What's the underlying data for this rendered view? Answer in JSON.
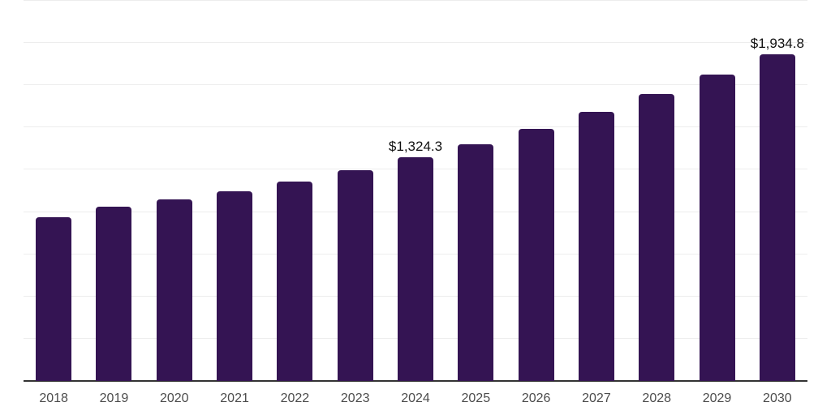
{
  "chart_data": {
    "type": "bar",
    "title": "",
    "xlabel": "",
    "ylabel": "",
    "categories": [
      "2018",
      "2019",
      "2020",
      "2021",
      "2022",
      "2023",
      "2024",
      "2025",
      "2026",
      "2027",
      "2028",
      "2029",
      "2030"
    ],
    "values": [
      970,
      1032,
      1076,
      1124,
      1182,
      1249,
      1324.3,
      1403,
      1494,
      1591,
      1700,
      1812,
      1934.8
    ],
    "data_labels": [
      "",
      "",
      "",
      "",
      "",
      "",
      "$1,324.3",
      "",
      "",
      "",
      "",
      "",
      "$1,934.8"
    ],
    "ylim": [
      0,
      2255
    ],
    "gridline_step": 250,
    "grid": true,
    "legend": false,
    "colors": {
      "bar": "#341453",
      "gridline": "#ededed",
      "axis_line": "#333333",
      "tick_label": "#4c4c4c",
      "data_label": "#111111",
      "background": "#ffffff"
    }
  }
}
